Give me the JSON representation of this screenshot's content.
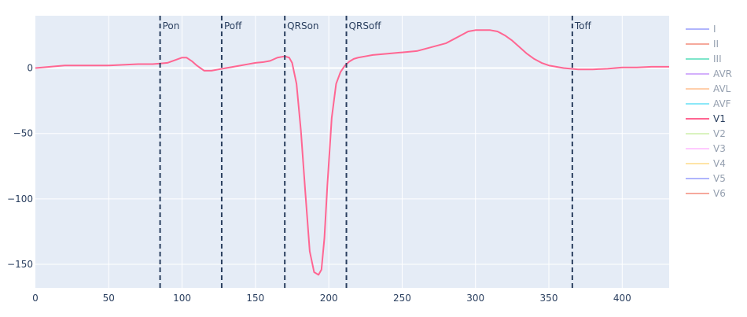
{
  "chart_data": {
    "type": "line",
    "title": "",
    "xlabel": "",
    "ylabel": "",
    "xlim": [
      0,
      432
    ],
    "ylim": [
      -168,
      40
    ],
    "grid": true,
    "legend_placement": "right",
    "x_ticks": [
      0,
      50,
      100,
      150,
      200,
      250,
      300,
      350,
      400
    ],
    "y_ticks": [
      0,
      -50,
      -100,
      -150
    ],
    "x_tick_labels": [
      "0",
      "50",
      "100",
      "150",
      "200",
      "250",
      "300",
      "350",
      "400"
    ],
    "y_tick_labels": [
      "0",
      "−50",
      "−100",
      "−150"
    ],
    "legend": [
      {
        "name": "I",
        "color": "#636efa",
        "active": false
      },
      {
        "name": "II",
        "color": "#ef553b",
        "active": false
      },
      {
        "name": "III",
        "color": "#00cc96",
        "active": false
      },
      {
        "name": "AVR",
        "color": "#ab63fa",
        "active": false
      },
      {
        "name": "AVL",
        "color": "#ffa15a",
        "active": false
      },
      {
        "name": "AVF",
        "color": "#19d3f3",
        "active": false
      },
      {
        "name": "V1",
        "color": "#ff6692",
        "active": true
      },
      {
        "name": "V2",
        "color": "#b6e880",
        "active": false
      },
      {
        "name": "V3",
        "color": "#ff97ff",
        "active": false
      },
      {
        "name": "V4",
        "color": "#fecb52",
        "active": false
      },
      {
        "name": "V5",
        "color": "#636efa",
        "active": false
      },
      {
        "name": "V6",
        "color": "#ef553b",
        "active": false
      }
    ],
    "series": [
      {
        "name": "V1",
        "color": "#ff6692",
        "x": [
          0,
          10,
          20,
          30,
          40,
          50,
          60,
          70,
          80,
          85,
          90,
          95,
          100,
          103,
          107,
          110,
          115,
          120,
          125,
          130,
          135,
          140,
          145,
          150,
          155,
          160,
          165,
          170,
          173,
          175,
          178,
          181,
          184,
          187,
          190,
          193,
          195,
          197,
          199,
          202,
          205,
          208,
          211,
          214,
          217,
          220,
          225,
          230,
          240,
          250,
          260,
          270,
          280,
          285,
          290,
          295,
          300,
          305,
          310,
          315,
          320,
          325,
          330,
          335,
          340,
          345,
          350,
          355,
          360,
          365,
          370,
          380,
          390,
          400,
          410,
          420,
          432
        ],
        "y": [
          0,
          1,
          2,
          2,
          2,
          2,
          2.5,
          3,
          3,
          3.5,
          4,
          6,
          8,
          8,
          5,
          2,
          -2,
          -2,
          -1,
          0,
          1,
          2,
          3,
          4,
          4.5,
          5.5,
          8,
          9,
          8,
          4,
          -12,
          -48,
          -95,
          -140,
          -156,
          -158,
          -154,
          -130,
          -90,
          -38,
          -12,
          -3,
          2,
          5,
          7,
          8,
          9,
          10,
          11,
          12,
          13,
          16,
          19,
          22,
          25,
          28,
          29,
          29,
          29,
          28,
          25,
          21,
          16,
          11,
          7,
          4,
          2,
          1,
          0,
          -0.5,
          -1,
          -1,
          -0.5,
          0.5,
          0.5,
          1,
          1
        ]
      }
    ],
    "vlines": [
      {
        "x": 85,
        "label": "Pon"
      },
      {
        "x": 127,
        "label": "Poff"
      },
      {
        "x": 170,
        "label": "QRSon"
      },
      {
        "x": 212,
        "label": "QRSoff"
      },
      {
        "x": 366,
        "label": "Toff"
      }
    ]
  }
}
